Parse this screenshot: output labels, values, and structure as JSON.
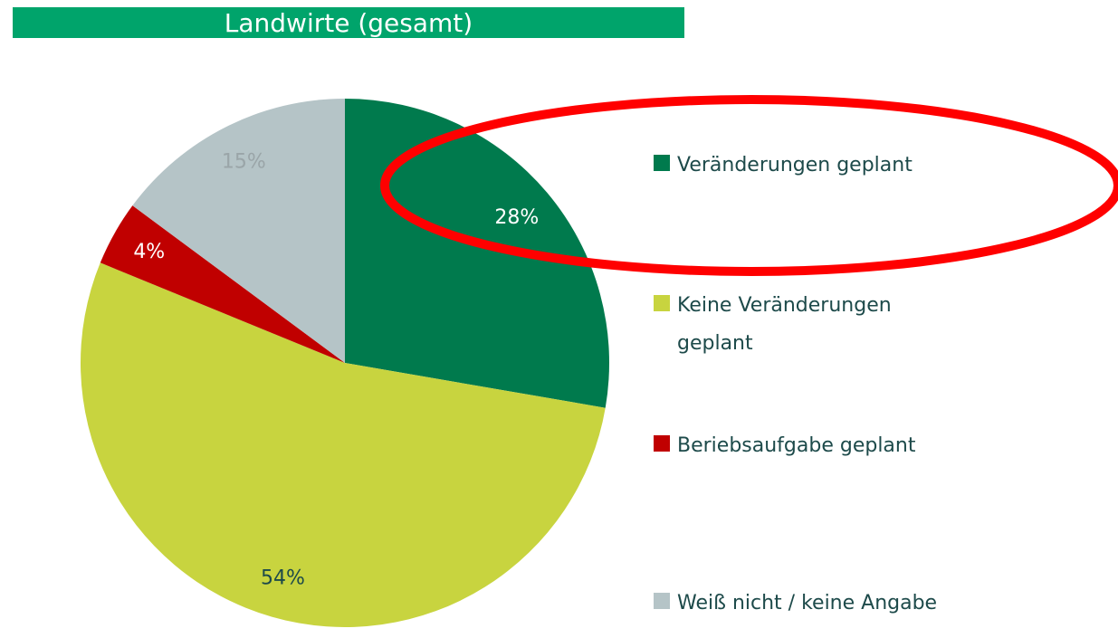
{
  "chart_data": {
    "type": "pie",
    "title": "Landwirte (gesamt)",
    "categories": [
      "Veränderungen geplant",
      "Keine Veränderungen geplant",
      "Beriebsaufgabe geplant",
      "Weiß nicht / keine Angabe"
    ],
    "values": [
      28,
      54,
      4,
      15
    ],
    "value_labels": [
      "28%",
      "54%",
      "4%",
      "15%"
    ],
    "colors": [
      "#007a4d",
      "#c8d43f",
      "#c00000",
      "#b5c4c7"
    ],
    "title_color": "#00a46b",
    "legend": "right"
  }
}
